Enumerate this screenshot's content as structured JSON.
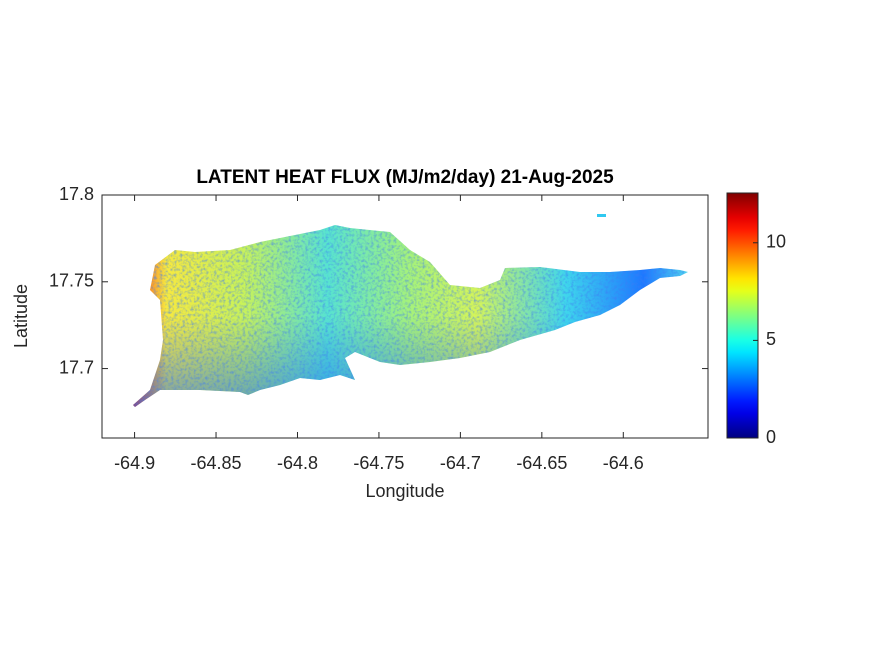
{
  "chart_data": {
    "type": "map",
    "title": "LATENT HEAT FLUX (MJ/m2/day) 21-Aug-2025",
    "x_label": "Longitude",
    "y_label": "Latitude",
    "xlim": [
      -64.92,
      -64.548
    ],
    "xticks": [
      -64.9,
      -64.85,
      -64.8,
      -64.75,
      -64.7,
      -64.65,
      -64.6
    ],
    "ylim": [
      17.66,
      17.8
    ],
    "yticks": [
      17.7,
      17.75,
      17.8
    ],
    "colormap": "jet",
    "clim": [
      0,
      12.55
    ],
    "cticks": [
      0,
      5,
      10
    ]
  }
}
